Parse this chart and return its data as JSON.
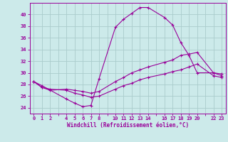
{
  "xlabel": "Windchill (Refroidissement éolien,°C)",
  "bg_color": "#cceaea",
  "grid_color": "#aacccc",
  "line_color": "#990099",
  "xlim": [
    -0.5,
    23.5
  ],
  "ylim": [
    23,
    42
  ],
  "yticks": [
    24,
    26,
    28,
    30,
    32,
    34,
    36,
    38,
    40
  ],
  "xtick_labels": [
    "0",
    "1",
    "2",
    "",
    "4",
    "5",
    "6",
    "7",
    "8",
    "",
    "10",
    "11",
    "12",
    "13",
    "14",
    "",
    "16",
    "17",
    "18",
    "19",
    "20",
    "",
    "22",
    "23"
  ],
  "xtick_positions": [
    0,
    1,
    2,
    3,
    4,
    5,
    6,
    7,
    8,
    9,
    10,
    11,
    12,
    13,
    14,
    15,
    16,
    17,
    18,
    19,
    20,
    21,
    22,
    23
  ],
  "series": [
    {
      "x": [
        0,
        1,
        4,
        5,
        6,
        7,
        8,
        10,
        11,
        12,
        13,
        14,
        16,
        17,
        18,
        19,
        20,
        22,
        23
      ],
      "y": [
        28.5,
        27.8,
        25.5,
        24.8,
        24.2,
        24.4,
        29.0,
        37.8,
        39.2,
        40.2,
        41.2,
        41.2,
        39.5,
        38.2,
        35.2,
        33.0,
        30.0,
        30.0,
        29.5
      ]
    },
    {
      "x": [
        0,
        1,
        2,
        4,
        5,
        6,
        7,
        8,
        10,
        11,
        12,
        13,
        14,
        16,
        17,
        18,
        19,
        20,
        22,
        23
      ],
      "y": [
        28.5,
        27.5,
        27.0,
        27.2,
        27.0,
        26.8,
        26.5,
        26.8,
        28.5,
        29.2,
        30.0,
        30.5,
        31.0,
        31.8,
        32.2,
        33.0,
        33.2,
        33.5,
        30.0,
        29.8
      ]
    },
    {
      "x": [
        0,
        1,
        2,
        4,
        5,
        6,
        7,
        8,
        10,
        11,
        12,
        13,
        14,
        16,
        17,
        18,
        19,
        20,
        22,
        23
      ],
      "y": [
        28.5,
        27.5,
        27.2,
        27.0,
        26.5,
        26.2,
        25.8,
        26.0,
        27.2,
        27.8,
        28.2,
        28.8,
        29.2,
        29.8,
        30.2,
        30.5,
        31.0,
        31.5,
        29.5,
        29.2
      ]
    }
  ]
}
